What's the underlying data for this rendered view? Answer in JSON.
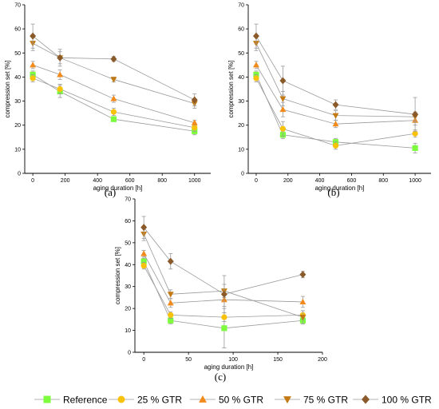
{
  "chart_data": [
    {
      "type": "scatter",
      "panel_label": "(a)",
      "xlabel": "aging duration [h]",
      "ylabel": "compression set [%]",
      "xlim": [
        -50,
        1100
      ],
      "ylim": [
        0,
        70
      ],
      "xticks": [
        0,
        200,
        400,
        600,
        800,
        1000
      ],
      "yticks": [
        0,
        10,
        20,
        30,
        40,
        50,
        60,
        70
      ],
      "x": [
        0,
        168,
        500,
        1000
      ],
      "series": [
        {
          "name": "Reference",
          "values": [
            41,
            34,
            22.5,
            17.5
          ],
          "errors": [
            1.5,
            2.5,
            1,
            1.5
          ]
        },
        {
          "name": "25 % GTR",
          "values": [
            39.5,
            35,
            25.5,
            19
          ],
          "errors": [
            1.5,
            2,
            1.5,
            1.5
          ]
        },
        {
          "name": "50 % GTR",
          "values": [
            45,
            41,
            31,
            21
          ],
          "errors": [
            1.5,
            2,
            1.5,
            1
          ]
        },
        {
          "name": "75 % GTR",
          "values": [
            54,
            48,
            39,
            29
          ],
          "errors": [
            3,
            2.5,
            1,
            2
          ]
        },
        {
          "name": "100 % GTR",
          "values": [
            57,
            48,
            47.5,
            30.5
          ],
          "errors": [
            5,
            3.5,
            1,
            2.5
          ]
        }
      ]
    },
    {
      "type": "scatter",
      "panel_label": "(b)",
      "xlabel": "aging duration [h]",
      "ylabel": "compression set [%]",
      "xlim": [
        -50,
        1100
      ],
      "ylim": [
        0,
        70
      ],
      "xticks": [
        0,
        200,
        400,
        600,
        800,
        1000
      ],
      "yticks": [
        0,
        10,
        20,
        30,
        40,
        50,
        60,
        70
      ],
      "x": [
        0,
        168,
        500,
        1000
      ],
      "series": [
        {
          "name": "Reference",
          "values": [
            41,
            16,
            13,
            10.5
          ],
          "errors": [
            1.5,
            1.5,
            1.5,
            2
          ]
        },
        {
          "name": "25 % GTR",
          "values": [
            39.5,
            18.5,
            11.5,
            16.5
          ],
          "errors": [
            1.5,
            3,
            1.5,
            1.5
          ]
        },
        {
          "name": "50 % GTR",
          "values": [
            45,
            26.5,
            20.5,
            22
          ],
          "errors": [
            1.5,
            3,
            1.5,
            2
          ]
        },
        {
          "name": "75 % GTR",
          "values": [
            54,
            31,
            24,
            23.5
          ],
          "errors": [
            3,
            3,
            2,
            2
          ]
        },
        {
          "name": "100 % GTR",
          "values": [
            57,
            38.5,
            28.5,
            24.5
          ],
          "errors": [
            5,
            6,
            2,
            7
          ]
        }
      ]
    },
    {
      "type": "scatter",
      "panel_label": "(c)",
      "xlabel": "aging duration [h]",
      "ylabel": "compression set [%]",
      "xlim": [
        -10,
        200
      ],
      "ylim": [
        0,
        70
      ],
      "xticks": [
        0,
        50,
        100,
        150,
        200
      ],
      "yticks": [
        0,
        10,
        20,
        30,
        40,
        50,
        60,
        70
      ],
      "x": [
        0,
        30,
        90,
        178
      ],
      "series": [
        {
          "name": "Reference",
          "values": [
            41.5,
            14.5,
            11,
            14.5
          ],
          "errors": [
            1.5,
            1.5,
            9,
            1.5
          ]
        },
        {
          "name": "25 % GTR",
          "values": [
            39.5,
            17,
            16,
            17
          ],
          "errors": [
            1.5,
            1.5,
            2,
            2
          ]
        },
        {
          "name": "50 % GTR",
          "values": [
            45,
            22.5,
            24,
            23
          ],
          "errors": [
            1.5,
            2,
            3,
            2.5
          ]
        },
        {
          "name": "75 % GTR",
          "values": [
            54,
            26.5,
            28,
            16
          ],
          "errors": [
            3,
            2,
            3,
            3
          ]
        },
        {
          "name": "100 % GTR",
          "values": [
            57,
            41.5,
            26.5,
            35.5
          ],
          "errors": [
            5,
            3.5,
            8.5,
            1.5
          ]
        }
      ]
    }
  ],
  "legend": {
    "placement": "bottom",
    "entries": [
      {
        "label": "Reference",
        "marker": "square",
        "color": "#7CFC3C"
      },
      {
        "label": "25 % GTR",
        "marker": "circle",
        "color": "#F9C20A"
      },
      {
        "label": "50 % GTR",
        "marker": "triangle-up",
        "color": "#F28A1C"
      },
      {
        "label": "75 % GTR",
        "marker": "triangle-down",
        "color": "#C47A12"
      },
      {
        "label": "100 % GTR",
        "marker": "diamond",
        "color": "#8B5A2B"
      }
    ]
  }
}
